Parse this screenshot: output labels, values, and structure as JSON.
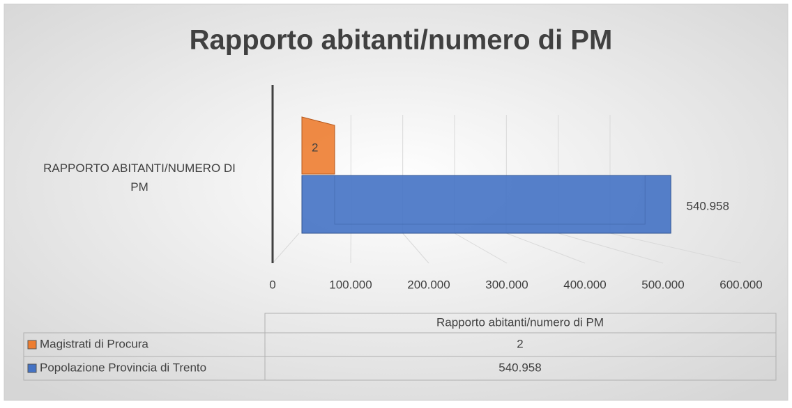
{
  "chart_data": {
    "type": "bar3d",
    "title": "Rapporto abitanti/numero di PM",
    "categories": [
      "RAPPORTO ABITANTI/NUMERO DI PM"
    ],
    "table_header": "Rapporto abitanti/numero di PM",
    "series": [
      {
        "name": "Magistrati di Procura",
        "color": "#ed7d31",
        "values": [
          2
        ],
        "value_labels": [
          "2"
        ]
      },
      {
        "name": "Popolazione Provincia di Trento",
        "color": "#4472c4",
        "values": [
          540958
        ],
        "value_labels": [
          "540.958"
        ]
      }
    ],
    "xlim": [
      0,
      600000
    ],
    "xticks": [
      0,
      {
        "value": 100000,
        "label": "100.000"
      },
      {
        "value": 200000,
        "label": "200.000"
      },
      {
        "value": 300000,
        "label": "300.000"
      },
      {
        "value": 400000,
        "label": "400.000"
      },
      {
        "value": 500000,
        "label": "500.000"
      },
      {
        "value": 600000,
        "label": "600.000"
      }
    ],
    "grid": true
  }
}
